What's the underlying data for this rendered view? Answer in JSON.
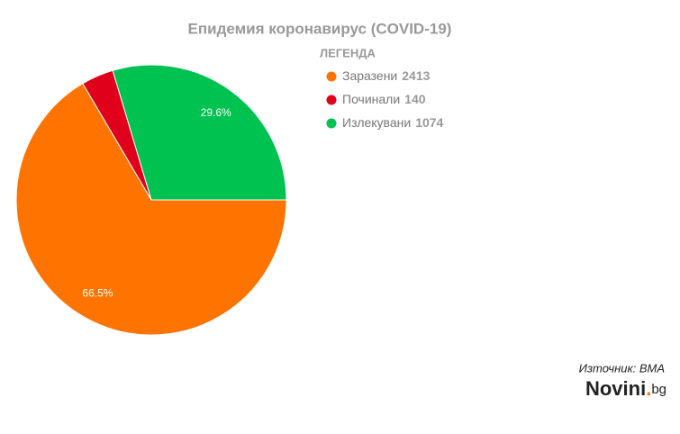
{
  "chart_data": {
    "type": "pie",
    "title": "Епидемия коронавирус (COVID-19)",
    "legend_title": "ЛЕГЕНДА",
    "categories": [
      "Заразени",
      "Починали",
      "Излекувани"
    ],
    "values": [
      2413,
      140,
      1074
    ],
    "value_labels": [
      "66.5%",
      null,
      "29.6%"
    ],
    "colors": [
      "#ff7300",
      "#e0001b",
      "#00c251"
    ],
    "source": "Източник: BMA",
    "logo": [
      "Novini",
      ".",
      "bg"
    ]
  }
}
